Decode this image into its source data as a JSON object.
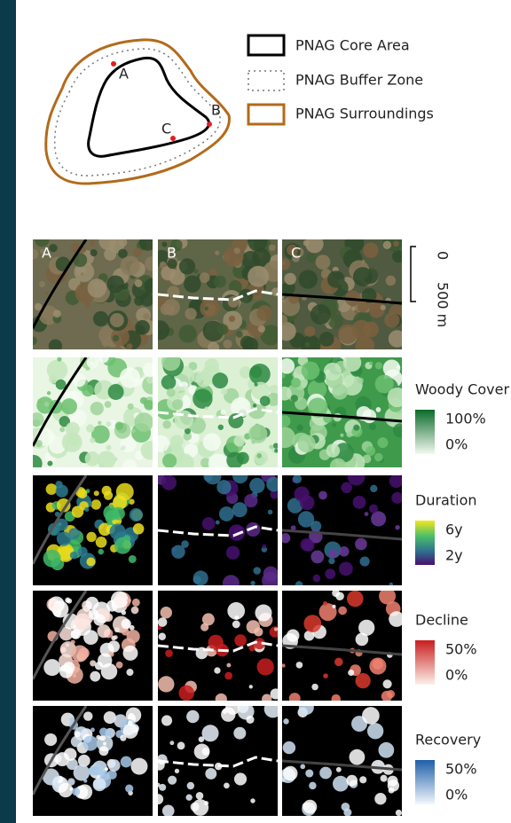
{
  "overview": {
    "site_labels": [
      "A",
      "B",
      "C"
    ],
    "legend": [
      "PNAG Core Area",
      "PNAG Buffer Zone",
      "PNAG Surroundings"
    ]
  },
  "panels": {
    "column_labels": [
      "A",
      "B",
      "C"
    ]
  },
  "scale_bar": {
    "start": "0",
    "end": "500 m"
  },
  "legends": [
    {
      "title": "Woody Cover",
      "max": "100%",
      "min": "0%"
    },
    {
      "title": "Duration",
      "max": "6y",
      "min": "2y"
    },
    {
      "title": "Decline",
      "max": "50%",
      "min": "0%"
    },
    {
      "title": "Recovery",
      "max": "50%",
      "min": "0%"
    }
  ]
}
